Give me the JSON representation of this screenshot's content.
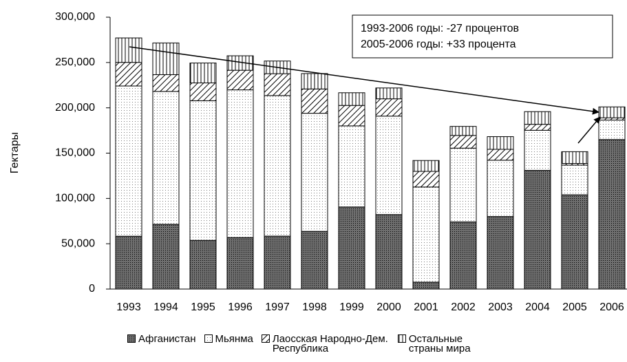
{
  "chart_data": {
    "type": "bar",
    "stacked": true,
    "y_label": "Гектары",
    "annotations": [
      "1993-2006 годы: -27 процентов",
      "2005-2006 годы: +33 процента"
    ],
    "categories": [
      "1993",
      "1994",
      "1995",
      "1996",
      "1997",
      "1998",
      "1999",
      "2000",
      "2001",
      "2002",
      "2003",
      "2004",
      "2005",
      "2006"
    ],
    "series": [
      {
        "name": "Афганистан",
        "color": "#6e6e6e",
        "values": [
          58300,
          71470,
          53759,
          56824,
          58416,
          63674,
          90583,
          82171,
          7606,
          74100,
          80000,
          131000,
          104000,
          165000
        ]
      },
      {
        "name": "Мьянма",
        "color": "#ffffff",
        "values": [
          165800,
          146600,
          154070,
          163000,
          155150,
          130300,
          89500,
          108700,
          105000,
          81400,
          62200,
          44200,
          32800,
          21500
        ]
      },
      {
        "name": "Лаосская Народно-Дем. Республика",
        "color": "#ffffff",
        "values": [
          26040,
          18520,
          19650,
          21601,
          24082,
          26837,
          22543,
          19052,
          17255,
          14000,
          12000,
          6600,
          1800,
          2500
        ]
      },
      {
        "name": "Остальные страны мира",
        "color": "#ffffff",
        "values": [
          27000,
          35000,
          22000,
          16000,
          14000,
          17000,
          14000,
          12000,
          12000,
          10000,
          14000,
          14000,
          13000,
          12000
        ]
      }
    ],
    "ylim": [
      0,
      300000
    ],
    "yticks": [
      0,
      {
        "value": 50000,
        "label": "50,000"
      },
      {
        "value": 100000,
        "label": "100,000"
      },
      {
        "value": 150000,
        "label": "150,000"
      },
      {
        "value": 200000,
        "label": "200,000"
      },
      {
        "value": 250000,
        "label": "250,000"
      },
      {
        "value": 300000,
        "label": "300,000"
      }
    ],
    "grid": false
  }
}
